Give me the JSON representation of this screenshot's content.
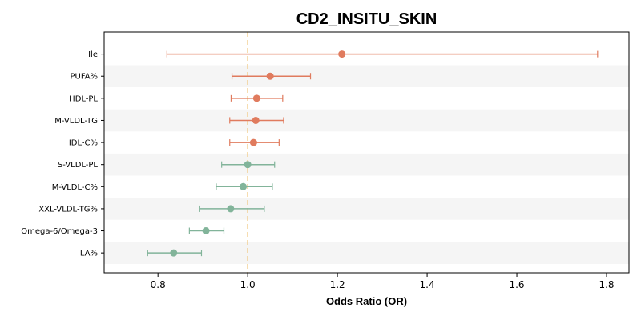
{
  "chart_data": {
    "type": "forest",
    "title": "CD2_INSITU_SKIN",
    "xlabel": "Odds Ratio (OR)",
    "xlim": [
      0.68,
      1.85
    ],
    "xticks": [
      0.8,
      1.0,
      1.2,
      1.4,
      1.6,
      1.8
    ],
    "xtick_labels": [
      "0.8",
      "1.0",
      "1.2",
      "1.4",
      "1.6",
      "1.8"
    ],
    "reference_line": 1.0,
    "grid": false,
    "colors": {
      "positive": "#e07b5e",
      "negative": "#82b49a",
      "reference": "#f0c77e",
      "band": "#f5f5f5"
    },
    "rows": [
      {
        "label": "Ile",
        "or": 1.21,
        "lo": 0.82,
        "hi": 1.78,
        "group": "positive"
      },
      {
        "label": "PUFA%",
        "or": 1.05,
        "lo": 0.965,
        "hi": 1.14,
        "group": "positive"
      },
      {
        "label": "HDL-PL",
        "or": 1.02,
        "lo": 0.963,
        "hi": 1.078,
        "group": "positive"
      },
      {
        "label": "M-VLDL-TG",
        "or": 1.018,
        "lo": 0.96,
        "hi": 1.08,
        "group": "positive"
      },
      {
        "label": "IDL-C%",
        "or": 1.013,
        "lo": 0.96,
        "hi": 1.07,
        "group": "positive"
      },
      {
        "label": "S-VLDL-PL",
        "or": 1.0,
        "lo": 0.942,
        "hi": 1.06,
        "group": "negative"
      },
      {
        "label": "M-VLDL-C%",
        "or": 0.99,
        "lo": 0.93,
        "hi": 1.055,
        "group": "negative"
      },
      {
        "label": "XXL-VLDL-TG%",
        "or": 0.962,
        "lo": 0.892,
        "hi": 1.037,
        "group": "negative"
      },
      {
        "label": "Omega-6/Omega-3",
        "or": 0.907,
        "lo": 0.87,
        "hi": 0.947,
        "group": "negative"
      },
      {
        "label": "LA%",
        "or": 0.835,
        "lo": 0.777,
        "hi": 0.897,
        "group": "negative"
      }
    ]
  }
}
